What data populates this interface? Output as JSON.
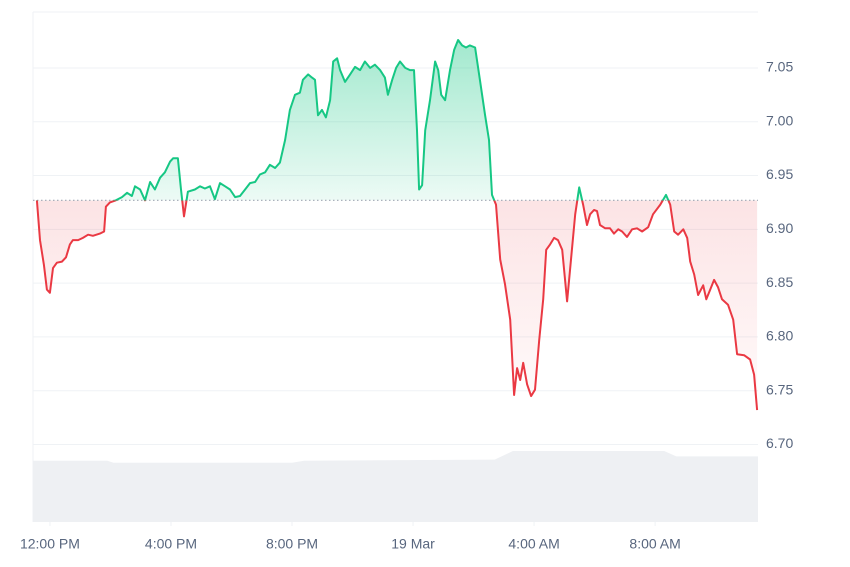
{
  "chart_data": {
    "type": "line",
    "x": [
      -0.43,
      -0.33,
      -0.2,
      -0.1,
      0,
      0.1,
      0.23,
      0.4,
      0.53,
      0.66,
      0.76,
      0.93,
      1.09,
      1.26,
      1.42,
      1.65,
      1.79,
      1.85,
      1.98,
      2.18,
      2.38,
      2.55,
      2.71,
      2.81,
      2.98,
      3.14,
      3.31,
      3.47,
      3.64,
      3.8,
      3.97,
      4.07,
      4.23,
      4.33,
      4.43,
      4.56,
      4.79,
      4.96,
      5.12,
      5.29,
      5.45,
      5.62,
      5.79,
      5.95,
      6.12,
      6.28,
      6.45,
      6.61,
      6.78,
      6.94,
      7.11,
      7.27,
      7.44,
      7.6,
      7.77,
      7.93,
      8.1,
      8.26,
      8.36,
      8.53,
      8.66,
      8.76,
      8.86,
      8.99,
      9.12,
      9.26,
      9.36,
      9.49,
      9.59,
      9.75,
      9.92,
      10.08,
      10.25,
      10.41,
      10.58,
      10.74,
      10.91,
      11.07,
      11.17,
      11.31,
      11.44,
      11.57,
      11.74,
      11.9,
      12.03,
      12.13,
      12.2,
      12.3,
      12.4,
      12.56,
      12.73,
      12.83,
      12.93,
      13.06,
      13.22,
      13.36,
      13.49,
      13.62,
      13.75,
      13.88,
      14.05,
      14.21,
      14.38,
      14.51,
      14.61,
      14.74,
      14.88,
      15.04,
      15.21,
      15.34,
      15.44,
      15.54,
      15.64,
      15.77,
      15.9,
      16.03,
      16.17,
      16.3,
      16.4,
      16.53,
      16.66,
      16.79,
      16.93,
      17.09,
      17.22,
      17.36,
      17.49,
      17.62,
      17.75,
      17.85,
      17.98,
      18.08,
      18.18,
      18.35,
      18.51,
      18.64,
      18.78,
      18.91,
      19.07,
      19.24,
      19.4,
      19.57,
      19.77,
      19.93,
      20.17,
      20.36,
      20.5,
      20.63,
      20.76,
      20.93,
      21.06,
      21.16,
      21.29,
      21.42,
      21.59,
      21.69,
      21.82,
      21.95,
      22.08,
      22.21,
      22.41,
      22.58,
      22.71,
      22.94,
      23.14,
      23.27,
      23.37
    ],
    "values": [
      6.927,
      6.89,
      6.867,
      6.844,
      6.841,
      6.864,
      6.869,
      6.87,
      6.874,
      6.886,
      6.89,
      6.89,
      6.892,
      6.895,
      6.894,
      6.896,
      6.898,
      6.921,
      6.925,
      6.927,
      6.93,
      6.934,
      6.931,
      6.94,
      6.937,
      6.927,
      6.944,
      6.937,
      6.948,
      6.953,
      6.963,
      6.966,
      6.966,
      6.937,
      6.912,
      6.935,
      6.937,
      6.94,
      6.938,
      6.94,
      6.928,
      6.943,
      6.94,
      6.937,
      6.93,
      6.931,
      6.937,
      6.943,
      6.944,
      6.951,
      6.953,
      6.96,
      6.957,
      6.962,
      6.983,
      7.011,
      7.025,
      7.027,
      7.039,
      7.044,
      7.041,
      7.039,
      7.006,
      7.011,
      7.004,
      7.02,
      7.056,
      7.059,
      7.048,
      7.037,
      7.044,
      7.051,
      7.048,
      7.056,
      7.05,
      7.053,
      7.048,
      7.041,
      7.025,
      7.039,
      7.05,
      7.056,
      7.05,
      7.048,
      7.048,
      6.992,
      6.937,
      6.941,
      6.992,
      7.02,
      7.056,
      7.048,
      7.025,
      7.02,
      7.048,
      7.067,
      7.076,
      7.071,
      7.069,
      7.071,
      7.069,
      7.039,
      7.006,
      6.983,
      6.932,
      6.923,
      6.872,
      6.849,
      6.816,
      6.746,
      6.771,
      6.76,
      6.776,
      6.756,
      6.745,
      6.751,
      6.797,
      6.835,
      6.881,
      6.886,
      6.892,
      6.89,
      6.881,
      6.833,
      6.872,
      6.914,
      6.939,
      6.923,
      6.904,
      6.914,
      6.918,
      6.917,
      6.904,
      6.901,
      6.901,
      6.896,
      6.9,
      6.898,
      6.893,
      6.9,
      6.901,
      6.898,
      6.902,
      6.914,
      6.923,
      6.932,
      6.923,
      6.898,
      6.895,
      6.9,
      6.892,
      6.87,
      6.858,
      6.839,
      6.848,
      6.835,
      6.844,
      6.853,
      6.846,
      6.835,
      6.83,
      6.816,
      6.784,
      6.783,
      6.779,
      6.765,
      6.732
    ],
    "baseline": 6.927,
    "up_color": "#16c784",
    "down_color": "#ea3943",
    "volume": {
      "color": "#eef0f3",
      "x": [
        -0.56,
        1.9,
        2.1,
        8.0,
        8.4,
        14.7,
        15.3,
        20.3,
        20.7,
        23.4
      ],
      "values": [
        6.685,
        6.685,
        6.683,
        6.683,
        6.685,
        6.686,
        6.694,
        6.694,
        6.689,
        6.689
      ]
    },
    "xlim": [
      -0.56,
      23.4
    ],
    "xticks": [
      {
        "value": 0,
        "label": "12:00 PM"
      },
      {
        "value": 4,
        "label": "4:00 PM"
      },
      {
        "value": 8,
        "label": "8:00 PM"
      },
      {
        "value": 12,
        "label": "19 Mar"
      },
      {
        "value": 16,
        "label": "4:00 AM"
      },
      {
        "value": 20,
        "label": "8:00 AM"
      }
    ],
    "ylim": [
      6.628,
      7.102
    ],
    "yticks": [
      {
        "value": 6.7,
        "label": "6.70"
      },
      6.75,
      {
        "value": 6.8,
        "label": "6.80"
      },
      6.85,
      {
        "value": 6.9,
        "label": "6.90"
      },
      6.95,
      {
        "value": 7.0,
        "label": "7.00"
      },
      7.05
    ],
    "grid": true
  }
}
